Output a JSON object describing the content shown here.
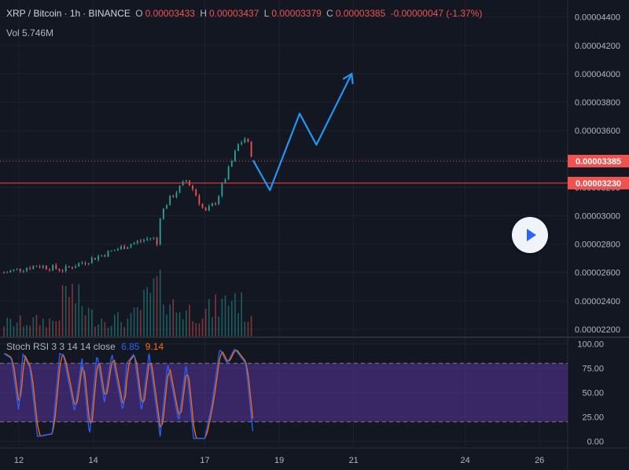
{
  "header": {
    "symbol": "XRP / Bitcoin",
    "interval": "1h",
    "exchange": "BINANCE",
    "open_label": "O",
    "open": "0.00003433",
    "high_label": "H",
    "high": "0.00003437",
    "low_label": "L",
    "low": "0.00003379",
    "close_label": "C",
    "close": "0.00003385",
    "change": "-0.00000047 (-1.37%)",
    "volume_label": "Vol",
    "volume": "5.746M"
  },
  "rsi_header": {
    "label": "Stoch RSI 3 3 14 14 close",
    "k": "6.85",
    "d": "9.14"
  },
  "price_tags": {
    "last": "0.00003385",
    "level": "0.00003230"
  },
  "colors": {
    "up": "#26a69a",
    "down": "#ef5350",
    "k_line": "#2962ff",
    "d_line": "#ff6d00",
    "projection": "#2196f3",
    "band": "#673ab7",
    "level_line": "#f23645"
  },
  "play_icon": "play-icon",
  "chart_data": [
    {
      "type": "candlestick",
      "title": "XRP / Bitcoin · 1h · BINANCE",
      "y_ticks": [
        "0.00004400",
        "0.00004200",
        "0.00004000",
        "0.00003800",
        "0.00003600",
        "0.00003400",
        "0.00003200",
        "0.00003000",
        "0.00002800",
        "0.00002600",
        "0.00002400",
        "0.00002200"
      ],
      "x_ticks": [
        "12",
        "14",
        "17",
        "19",
        "21",
        "24",
        "26"
      ],
      "x_tick_days": [
        12,
        14,
        17,
        19,
        21,
        24,
        26
      ],
      "ylim": [
        2.15e-05,
        4.52e-05
      ],
      "grid": true,
      "price_path": [
        {
          "day": 11.6,
          "price": 2.6e-05
        },
        {
          "day": 12.5,
          "price": 2.65e-05
        },
        {
          "day": 13.2,
          "price": 2.62e-05
        },
        {
          "day": 14.0,
          "price": 2.7e-05
        },
        {
          "day": 15.0,
          "price": 2.8e-05
        },
        {
          "day": 15.6,
          "price": 2.85e-05
        },
        {
          "day": 15.75,
          "price": 2.78e-05
        },
        {
          "day": 15.8,
          "price": 3e-05
        },
        {
          "day": 16.0,
          "price": 3.1e-05
        },
        {
          "day": 16.5,
          "price": 3.25e-05
        },
        {
          "day": 16.7,
          "price": 3.18e-05
        },
        {
          "day": 17.0,
          "price": 3.02e-05
        },
        {
          "day": 17.3,
          "price": 3.1e-05
        },
        {
          "day": 17.6,
          "price": 3.3e-05
        },
        {
          "day": 17.9,
          "price": 3.5e-05
        },
        {
          "day": 18.1,
          "price": 3.55e-05
        },
        {
          "day": 18.3,
          "price": 3.4e-05
        }
      ],
      "volume_path": [
        {
          "day": 11.6,
          "v": 0.25
        },
        {
          "day": 13.0,
          "v": 0.3
        },
        {
          "day": 13.3,
          "v": 0.9
        },
        {
          "day": 14.0,
          "v": 0.35
        },
        {
          "day": 15.0,
          "v": 0.3
        },
        {
          "day": 15.8,
          "v": 1.0
        },
        {
          "day": 16.2,
          "v": 0.5
        },
        {
          "day": 17.0,
          "v": 0.45
        },
        {
          "day": 17.5,
          "v": 0.6
        },
        {
          "day": 17.8,
          "v": 0.8
        },
        {
          "day": 18.3,
          "v": 0.2
        }
      ],
      "last_price": 3.385e-05,
      "support_level": 3.23e-05,
      "projection": [
        {
          "day": 18.3,
          "price": 3.39e-05
        },
        {
          "day": 18.75,
          "price": 3.18e-05
        },
        {
          "day": 19.55,
          "price": 3.72e-05
        },
        {
          "day": 20.0,
          "price": 3.5e-05
        },
        {
          "day": 20.95,
          "price": 4e-05
        }
      ]
    },
    {
      "type": "line",
      "title": "Stoch RSI 3 3 14 14 close",
      "y_ticks": [
        "100.00",
        "75.00",
        "50.00",
        "25.00",
        "0.00"
      ],
      "ylim": [
        -6,
        106
      ],
      "band": [
        20,
        80
      ],
      "series": [
        {
          "name": "K",
          "value": 6.85
        },
        {
          "name": "D",
          "value": 9.14
        }
      ],
      "k_path": [
        {
          "day": 11.6,
          "v": 90
        },
        {
          "day": 11.8,
          "v": 85
        },
        {
          "day": 12.0,
          "v": 30
        },
        {
          "day": 12.1,
          "v": 90
        },
        {
          "day": 12.3,
          "v": 75
        },
        {
          "day": 12.5,
          "v": 5
        },
        {
          "day": 12.9,
          "v": 8
        },
        {
          "day": 13.1,
          "v": 90
        },
        {
          "day": 13.2,
          "v": 88
        },
        {
          "day": 13.5,
          "v": 30
        },
        {
          "day": 13.7,
          "v": 85
        },
        {
          "day": 13.9,
          "v": 5
        },
        {
          "day": 14.1,
          "v": 90
        },
        {
          "day": 14.3,
          "v": 40
        },
        {
          "day": 14.5,
          "v": 90
        },
        {
          "day": 14.8,
          "v": 30
        },
        {
          "day": 14.9,
          "v": 80
        },
        {
          "day": 15.1,
          "v": 90
        },
        {
          "day": 15.3,
          "v": 30
        },
        {
          "day": 15.5,
          "v": 90
        },
        {
          "day": 15.8,
          "v": 5
        },
        {
          "day": 16.0,
          "v": 80
        },
        {
          "day": 16.3,
          "v": 20
        },
        {
          "day": 16.5,
          "v": 80
        },
        {
          "day": 16.7,
          "v": 3
        },
        {
          "day": 17.0,
          "v": 3
        },
        {
          "day": 17.2,
          "v": 40
        },
        {
          "day": 17.4,
          "v": 95
        },
        {
          "day": 17.6,
          "v": 80
        },
        {
          "day": 17.8,
          "v": 95
        },
        {
          "day": 18.1,
          "v": 80
        },
        {
          "day": 18.3,
          "v": 6.85
        }
      ]
    }
  ]
}
